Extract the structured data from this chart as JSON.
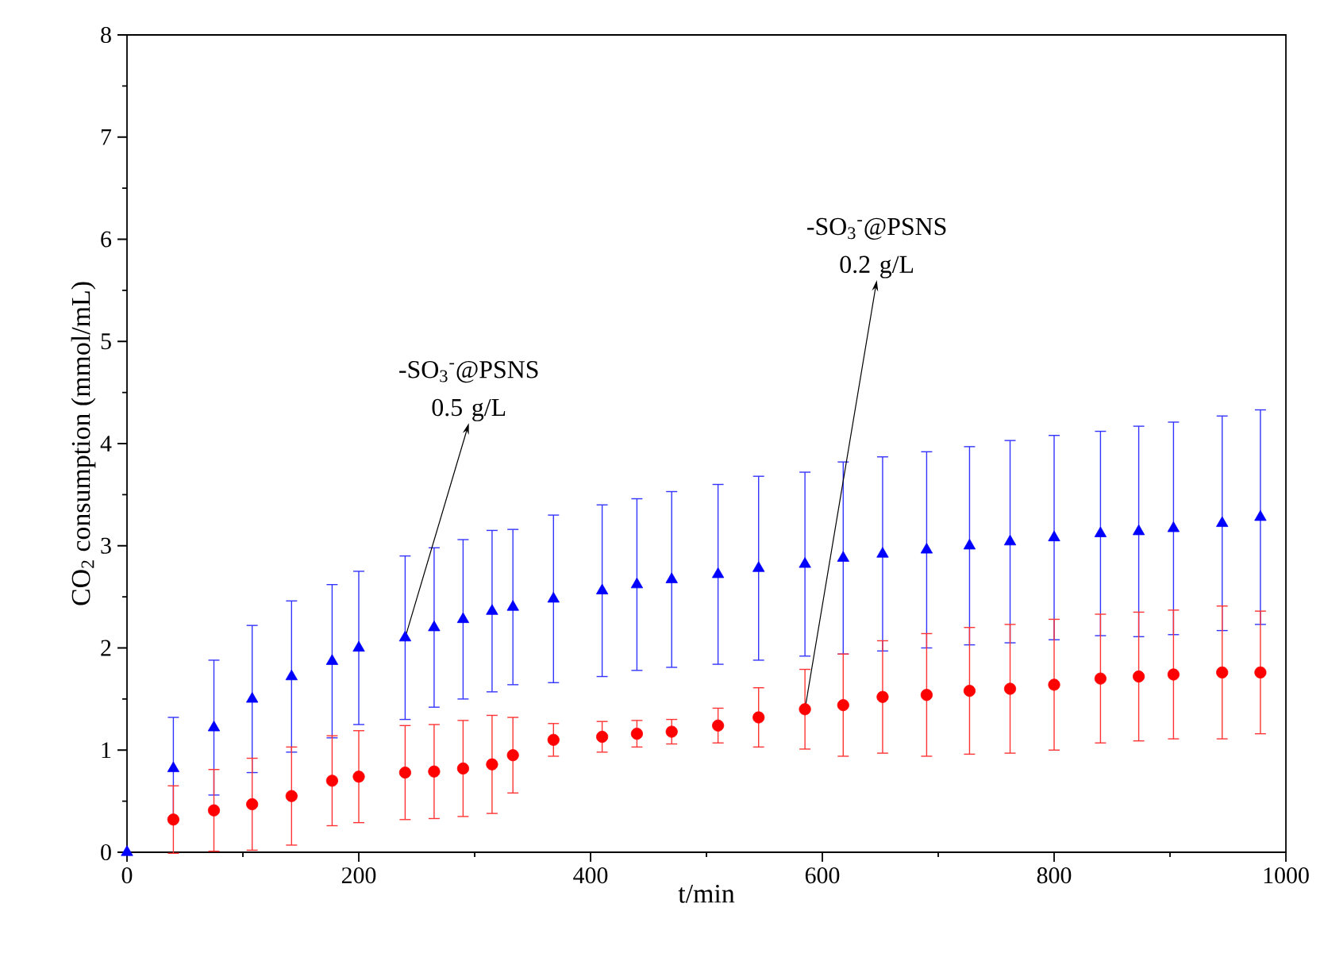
{
  "chart_data": {
    "type": "scatter",
    "xlabel": "t/min",
    "ylabel": "CO$_{2}$ consumption (mmol/mL)",
    "xlim": [
      0,
      1000
    ],
    "xticks": [
      0,
      200,
      400,
      600,
      800,
      1000
    ],
    "ylim": [
      0,
      8
    ],
    "yticks": [
      0,
      1,
      2,
      3,
      4,
      5,
      6,
      7,
      8
    ],
    "series": [
      {
        "color": "#0000ff",
        "marker": "triangle",
        "x": [
          0,
          40,
          75,
          108,
          142,
          177,
          200,
          240,
          265,
          290,
          315,
          333,
          368,
          410,
          440,
          470,
          510,
          545,
          585,
          618,
          652,
          690,
          727,
          762,
          800,
          840,
          873,
          903,
          945,
          978
        ],
        "values": [
          0,
          0.82,
          1.22,
          1.5,
          1.72,
          1.87,
          2.0,
          2.1,
          2.2,
          2.28,
          2.36,
          2.4,
          2.48,
          2.56,
          2.62,
          2.67,
          2.72,
          2.78,
          2.82,
          2.88,
          2.92,
          2.96,
          3.0,
          3.04,
          3.08,
          3.12,
          3.14,
          3.17,
          3.22,
          3.28
        ],
        "errors": [
          null,
          0.5,
          0.66,
          0.72,
          0.74,
          0.75,
          0.75,
          0.8,
          0.78,
          0.78,
          0.79,
          0.76,
          0.82,
          0.84,
          0.84,
          0.86,
          0.88,
          0.9,
          0.9,
          0.94,
          0.95,
          0.96,
          0.97,
          0.99,
          1.0,
          1.0,
          1.03,
          1.04,
          1.05,
          1.05
        ]
      },
      {
        "color": "#ff0000",
        "marker": "circle",
        "x": [
          40,
          75,
          108,
          142,
          177,
          200,
          240,
          265,
          290,
          315,
          333,
          368,
          410,
          440,
          470,
          510,
          545,
          585,
          618,
          652,
          690,
          727,
          762,
          800,
          840,
          873,
          903,
          945,
          978
        ],
        "values": [
          0.32,
          0.41,
          0.47,
          0.55,
          0.7,
          0.74,
          0.78,
          0.79,
          0.82,
          0.86,
          0.95,
          1.1,
          1.13,
          1.16,
          1.18,
          1.24,
          1.32,
          1.4,
          1.44,
          1.52,
          1.54,
          1.58,
          1.6,
          1.64,
          1.7,
          1.72,
          1.74,
          1.76,
          1.76
        ],
        "errors": [
          0.33,
          0.4,
          0.45,
          0.48,
          0.44,
          0.45,
          0.46,
          0.46,
          0.47,
          0.48,
          0.37,
          0.16,
          0.15,
          0.13,
          0.12,
          0.17,
          0.29,
          0.39,
          0.5,
          0.55,
          0.6,
          0.62,
          0.63,
          0.64,
          0.63,
          0.63,
          0.63,
          0.65,
          0.6
        ]
      }
    ],
    "annotations": [
      {
        "text": "-SO$_{3}$$^{-}$@PSNS 0.5 g/L",
        "x": 240,
        "y": 2.1
      },
      {
        "text": "-SO$_{3}$$^{-}$@PSNS 0.2 g/L",
        "x": 585,
        "y": 1.4
      }
    ]
  }
}
